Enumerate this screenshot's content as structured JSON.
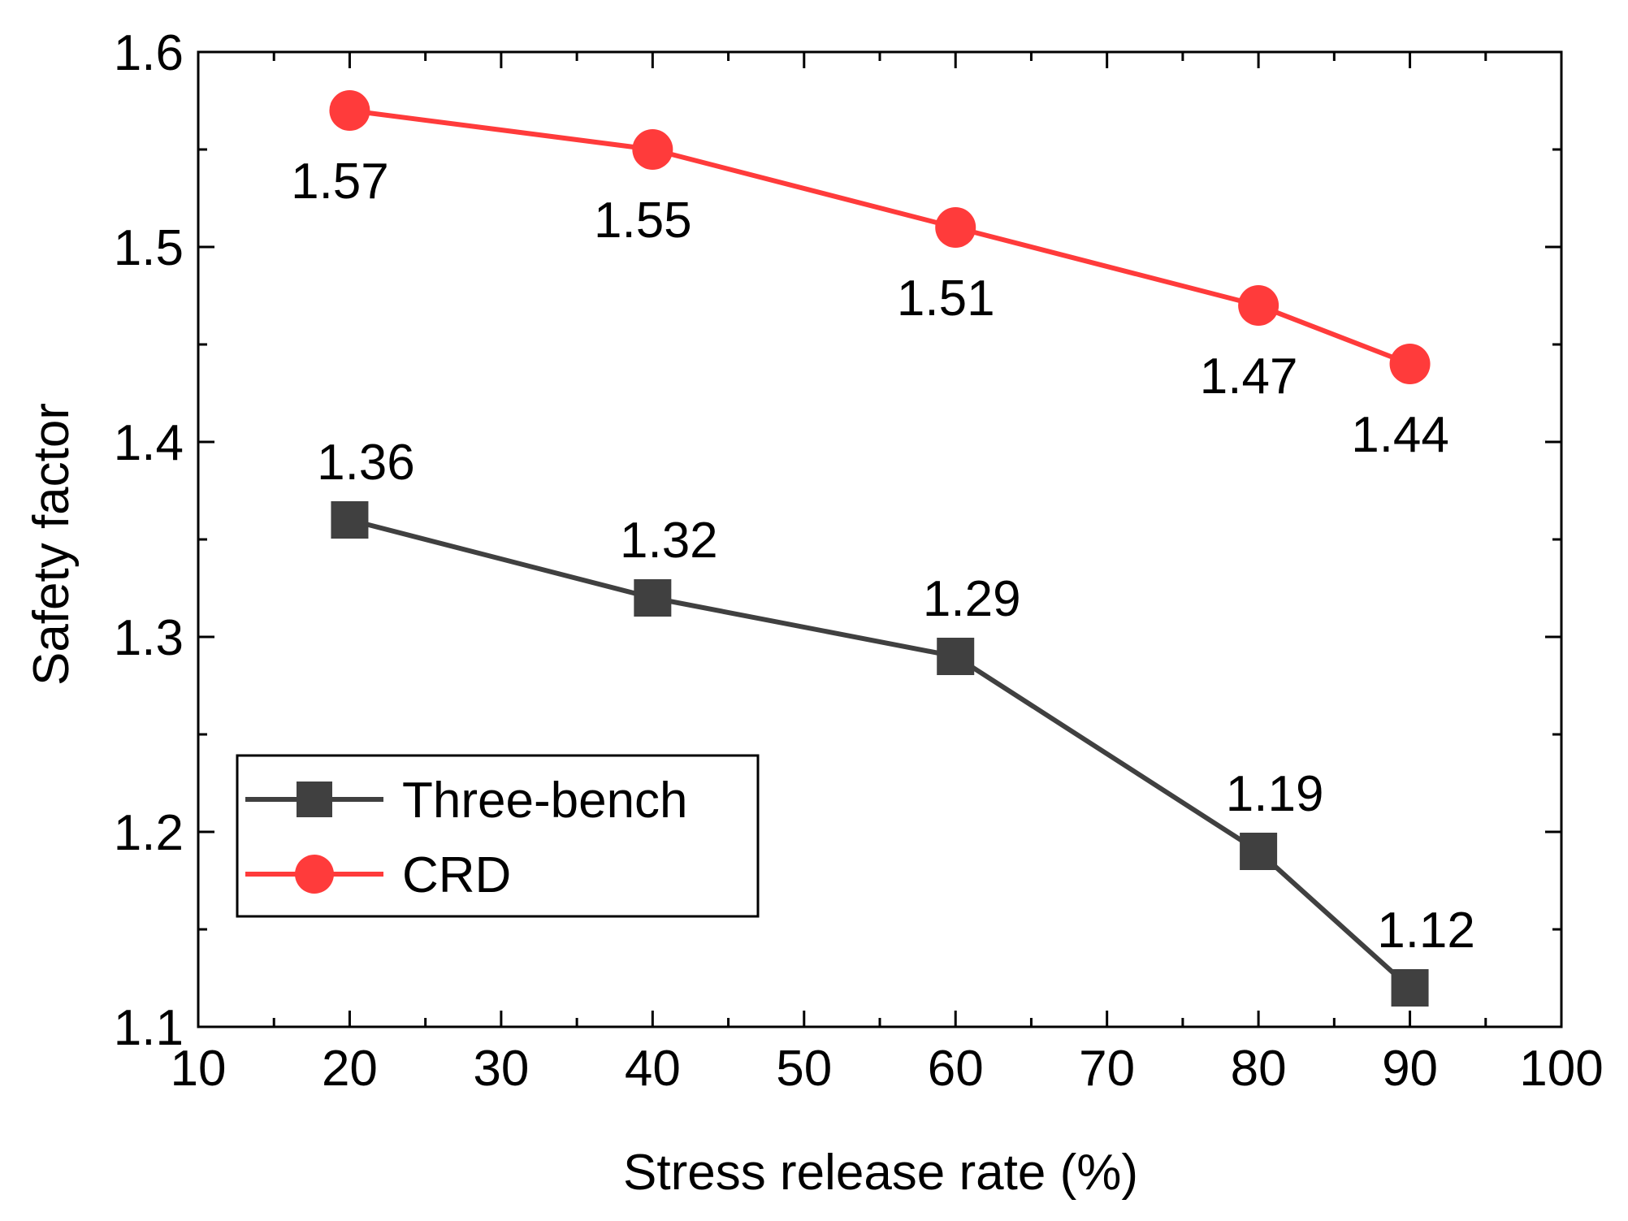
{
  "chart_data": {
    "type": "line",
    "title": "",
    "xlabel": "Stress release rate (%)",
    "ylabel": "Safety factor",
    "xlim": [
      10,
      100
    ],
    "ylim": [
      1.1,
      1.6
    ],
    "xticks": [
      10,
      20,
      30,
      40,
      50,
      60,
      70,
      80,
      90,
      100
    ],
    "xtick_labels": [
      "10",
      "20",
      "30",
      "40",
      "50",
      "60",
      "70",
      "80",
      "90",
      "100"
    ],
    "yticks": [
      1.1,
      1.2,
      1.3,
      1.4,
      1.5,
      1.6
    ],
    "ytick_labels": [
      "1.1",
      "1.2",
      "1.3",
      "1.4",
      "1.5",
      "1.6"
    ],
    "grid": false,
    "legend_position": "bottom-left",
    "series": [
      {
        "name": "Three-bench",
        "color": "#404040",
        "marker": "square",
        "x": [
          20,
          40,
          60,
          80,
          90
        ],
        "y": [
          1.36,
          1.32,
          1.29,
          1.19,
          1.12
        ],
        "labels": [
          "1.36",
          "1.32",
          "1.29",
          "1.19",
          "1.12"
        ],
        "label_position": "above"
      },
      {
        "name": "CRD",
        "color": "#ff3b3b",
        "marker": "circle",
        "x": [
          20,
          40,
          60,
          80,
          90
        ],
        "y": [
          1.57,
          1.55,
          1.51,
          1.47,
          1.44
        ],
        "labels": [
          "1.57",
          "1.55",
          "1.51",
          "1.47",
          "1.44"
        ],
        "label_position": "below"
      }
    ]
  }
}
